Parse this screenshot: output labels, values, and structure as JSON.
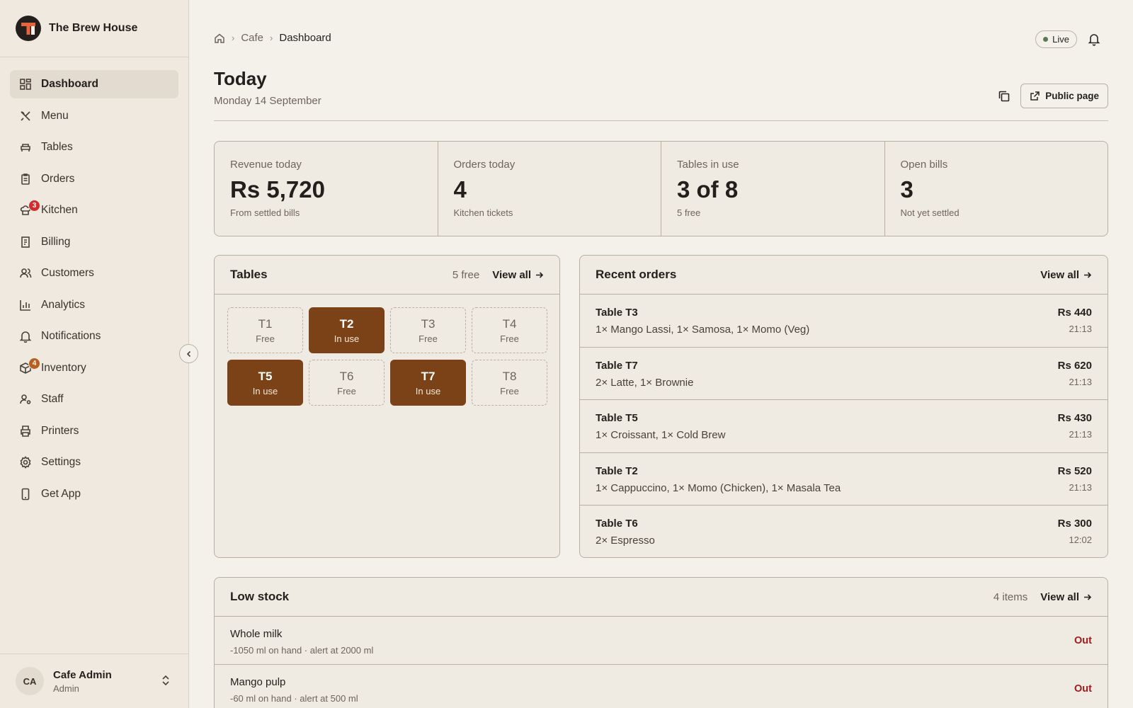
{
  "brand": {
    "name": "The Brew House"
  },
  "colors": {
    "accent": "#7a4216",
    "danger": "#a01c1c",
    "kitchen_badge": "#d42b2b",
    "inventory_badge": "#b85f1e",
    "live": "#5b7a50"
  },
  "sidebar": {
    "items": [
      {
        "label": "Dashboard",
        "icon": "dashboard-icon"
      },
      {
        "label": "Menu",
        "icon": "utensils-icon"
      },
      {
        "label": "Tables",
        "icon": "table-icon"
      },
      {
        "label": "Orders",
        "icon": "clipboard-icon"
      },
      {
        "label": "Kitchen",
        "icon": "chef-icon",
        "badge": "3"
      },
      {
        "label": "Billing",
        "icon": "receipt-icon"
      },
      {
        "label": "Customers",
        "icon": "users-icon"
      },
      {
        "label": "Analytics",
        "icon": "bar-chart-icon"
      },
      {
        "label": "Notifications",
        "icon": "bell-icon"
      },
      {
        "label": "Inventory",
        "icon": "package-icon",
        "badge": "4"
      },
      {
        "label": "Staff",
        "icon": "staff-icon"
      },
      {
        "label": "Printers",
        "icon": "printer-icon"
      },
      {
        "label": "Settings",
        "icon": "gear-icon"
      },
      {
        "label": "Get App",
        "icon": "phone-icon"
      }
    ]
  },
  "user": {
    "initials": "CA",
    "name": "Cafe Admin",
    "role": "Admin"
  },
  "breadcrumb": {
    "home": "home-icon",
    "parent": "Cafe",
    "current": "Dashboard"
  },
  "status": {
    "live": "Live"
  },
  "header": {
    "title": "Today",
    "date": "Monday 14 September",
    "public_button": "Public page"
  },
  "stats": [
    {
      "label": "Revenue today",
      "value": "Rs 5,720",
      "sub": "From settled bills"
    },
    {
      "label": "Orders today",
      "value": "4",
      "sub": "Kitchen tickets"
    },
    {
      "label": "Tables in use",
      "value": "3 of 8",
      "sub": "5 free"
    },
    {
      "label": "Open bills",
      "value": "3",
      "sub": "Not yet settled"
    }
  ],
  "tables_panel": {
    "title": "Tables",
    "meta": "5 free",
    "view_all": "View all",
    "tables": [
      {
        "name": "T1",
        "status": "Free",
        "busy": false
      },
      {
        "name": "T2",
        "status": "In use",
        "busy": true
      },
      {
        "name": "T3",
        "status": "Free",
        "busy": false
      },
      {
        "name": "T4",
        "status": "Free",
        "busy": false
      },
      {
        "name": "T5",
        "status": "In use",
        "busy": true
      },
      {
        "name": "T6",
        "status": "Free",
        "busy": false
      },
      {
        "name": "T7",
        "status": "In use",
        "busy": true
      },
      {
        "name": "T8",
        "status": "Free",
        "busy": false
      }
    ]
  },
  "orders_panel": {
    "title": "Recent orders",
    "view_all": "View all",
    "orders": [
      {
        "table": "Table T3",
        "items": "1× Mango Lassi, 1× Samosa, 1× Momo (Veg)",
        "amount": "Rs 440",
        "time": "21:13"
      },
      {
        "table": "Table T7",
        "items": "2× Latte, 1× Brownie",
        "amount": "Rs 620",
        "time": "21:13"
      },
      {
        "table": "Table T5",
        "items": "1× Croissant, 1× Cold Brew",
        "amount": "Rs 430",
        "time": "21:13"
      },
      {
        "table": "Table T2",
        "items": "1× Cappuccino, 1× Momo (Chicken), 1× Masala Tea",
        "amount": "Rs 520",
        "time": "21:13"
      },
      {
        "table": "Table T6",
        "items": "2× Espresso",
        "amount": "Rs 300",
        "time": "12:02"
      }
    ]
  },
  "stock_panel": {
    "title": "Low stock",
    "meta": "4 items",
    "view_all": "View all",
    "items": [
      {
        "name": "Whole milk",
        "detail": "-1050 ml on hand · alert at 2000 ml",
        "status": "Out"
      },
      {
        "name": "Mango pulp",
        "detail": "-60 ml on hand · alert at 500 ml",
        "status": "Out"
      }
    ]
  }
}
